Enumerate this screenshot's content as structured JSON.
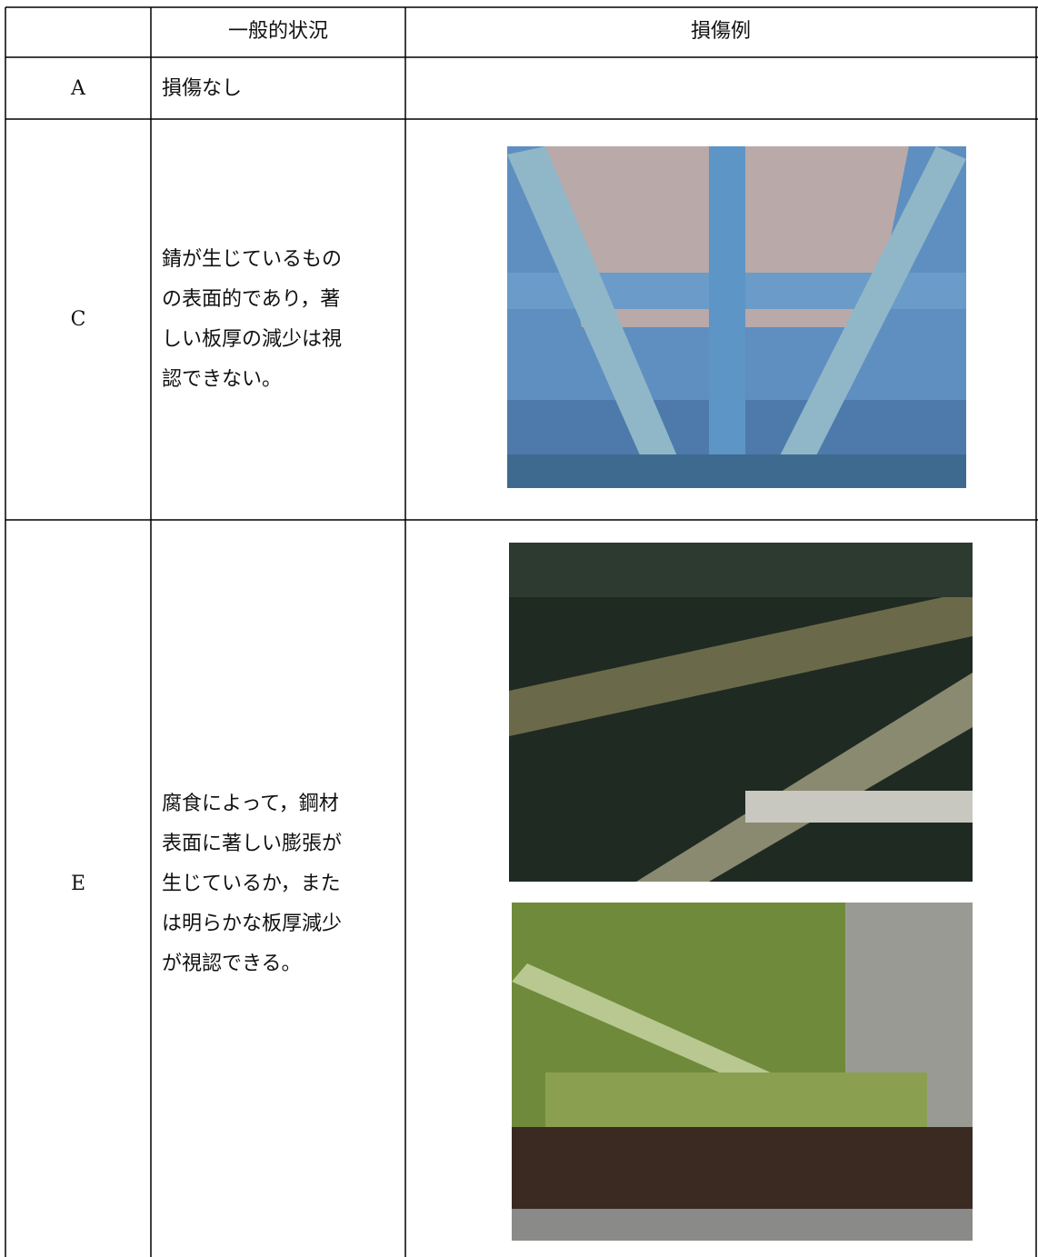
{
  "table": {
    "header": {
      "situation": "一般的状況",
      "example": "損傷例"
    },
    "rows": [
      {
        "grade": "A",
        "description": [
          "損傷なし"
        ]
      },
      {
        "grade": "C",
        "description": [
          "錆が生じているもの",
          "の表面的であり，著",
          "しい板厚の減少は視",
          "認できない。"
        ]
      },
      {
        "grade": "E",
        "description": [
          "腐食によって，鋼材",
          "表面に著しい膨張が",
          "生じているか，また",
          "は明らかな板厚減少",
          "が視認できる。"
        ]
      }
    ]
  }
}
